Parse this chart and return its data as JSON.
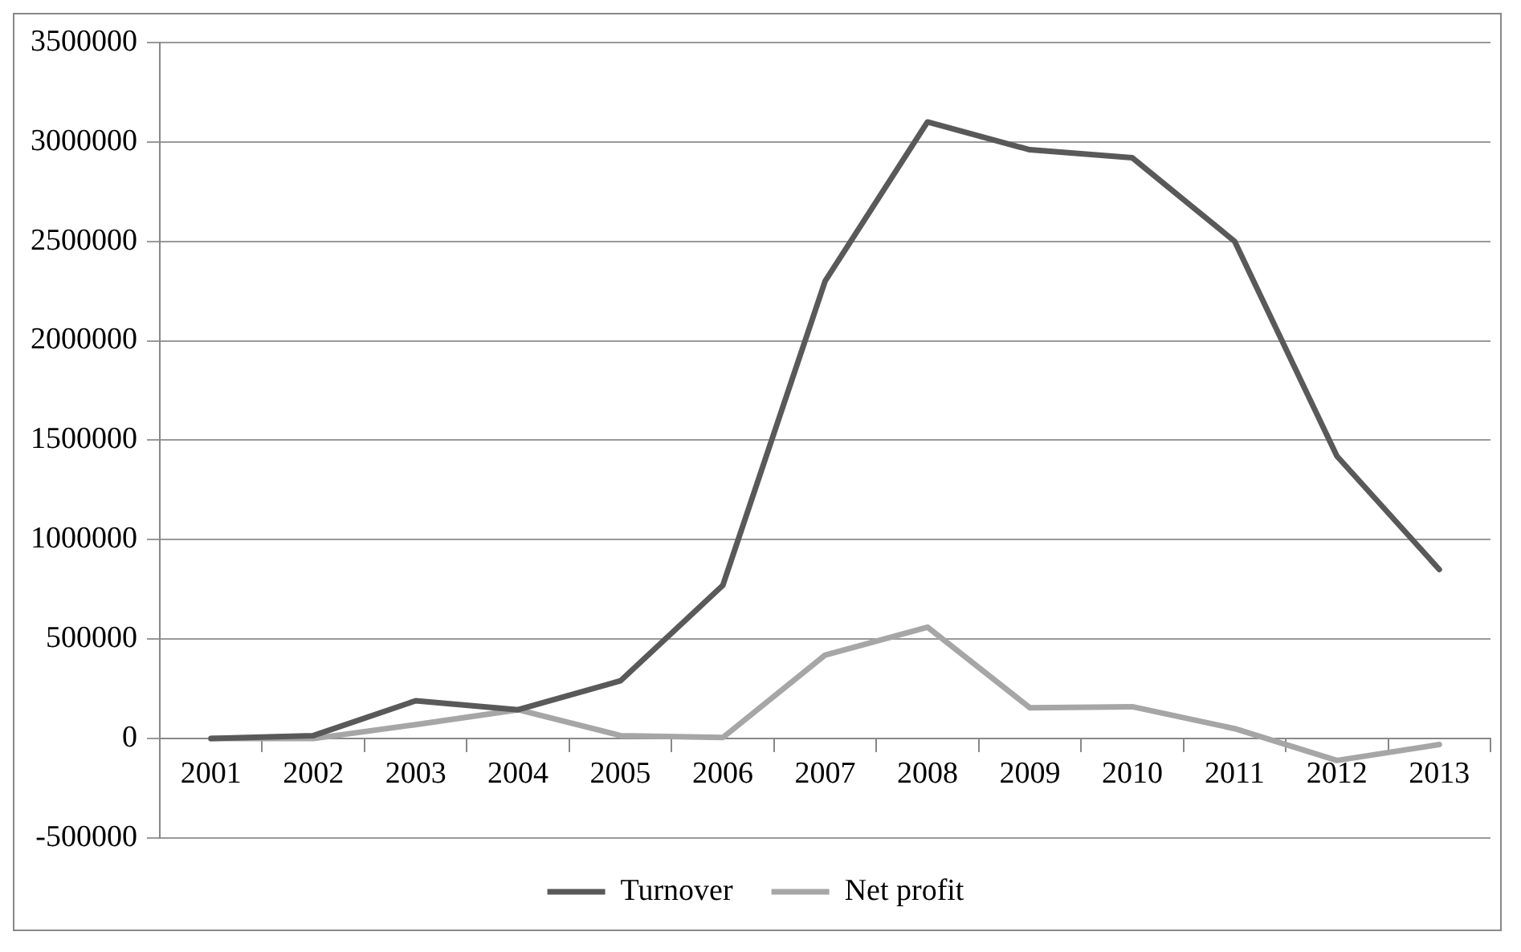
{
  "chart_data": {
    "type": "line",
    "categories": [
      "2001",
      "2002",
      "2003",
      "2004",
      "2005",
      "2006",
      "2007",
      "2008",
      "2009",
      "2010",
      "2011",
      "2012",
      "2013"
    ],
    "series": [
      {
        "name": "Turnover",
        "color": "#595959",
        "values": [
          0,
          15000,
          190000,
          145000,
          290000,
          770000,
          2300000,
          3100000,
          2960000,
          2920000,
          2500000,
          1420000,
          850000
        ]
      },
      {
        "name": "Net profit",
        "color": "#a6a6a6",
        "values": [
          0,
          0,
          70000,
          145000,
          15000,
          5000,
          420000,
          560000,
          155000,
          160000,
          50000,
          -110000,
          -30000
        ]
      }
    ],
    "ylim": [
      -500000,
      3500000
    ],
    "yticks": [
      -500000,
      0,
      500000,
      1000000,
      1500000,
      2000000,
      2500000,
      3000000,
      3500000
    ],
    "grid": "y",
    "legend": "bottom",
    "marker": "none",
    "line_style": "solid"
  }
}
